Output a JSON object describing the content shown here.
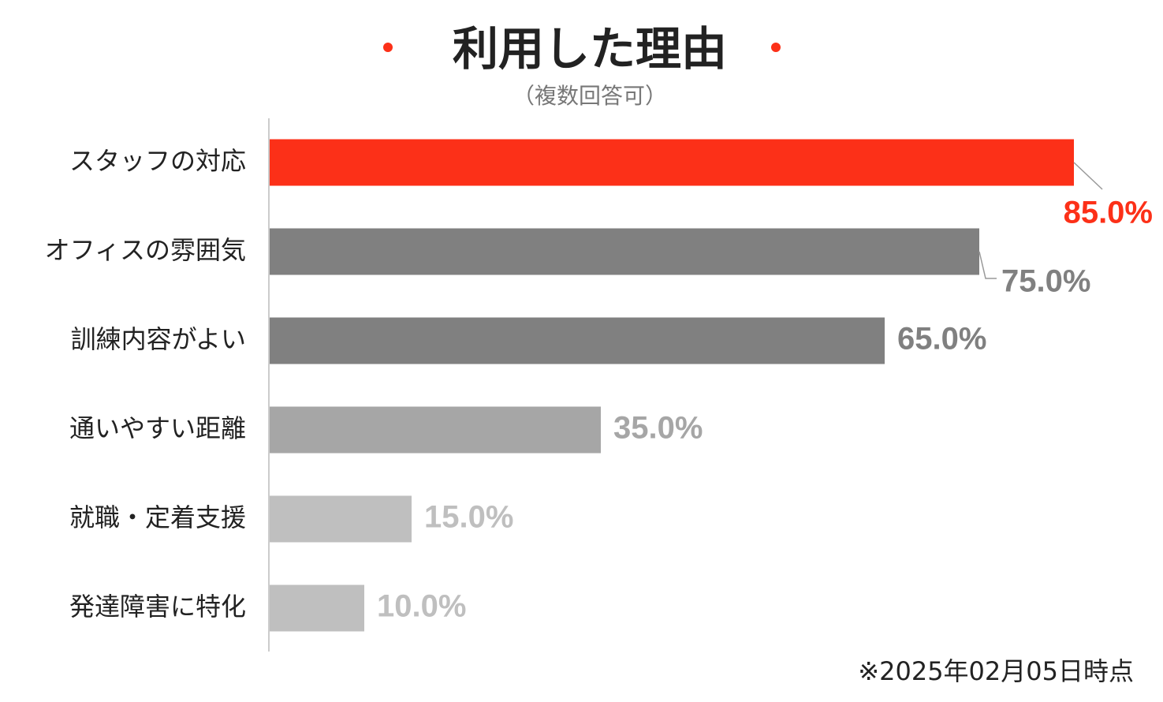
{
  "chart_data": {
    "type": "bar",
    "orientation": "horizontal",
    "title": "利用した理由",
    "subtitle": "（複数回答可）",
    "note": "※2025年02月05日時点",
    "categories": [
      "スタッフの対応",
      "オフィスの雰囲気",
      "訓練内容がよい",
      "通いやすい距離",
      "就職・定着支援",
      "発達障害に特化"
    ],
    "values": [
      85,
      75,
      65,
      35,
      15,
      10
    ],
    "value_labels": [
      "85.0%",
      "75.0%",
      "65.0%",
      "35.0%",
      "15.0%",
      "10.0%"
    ],
    "colors": [
      "#fc3018",
      "#808080",
      "#808080",
      "#a6a6a6",
      "#bfbfbf",
      "#bfbfbf"
    ],
    "accent_color": "#fc3018"
  }
}
